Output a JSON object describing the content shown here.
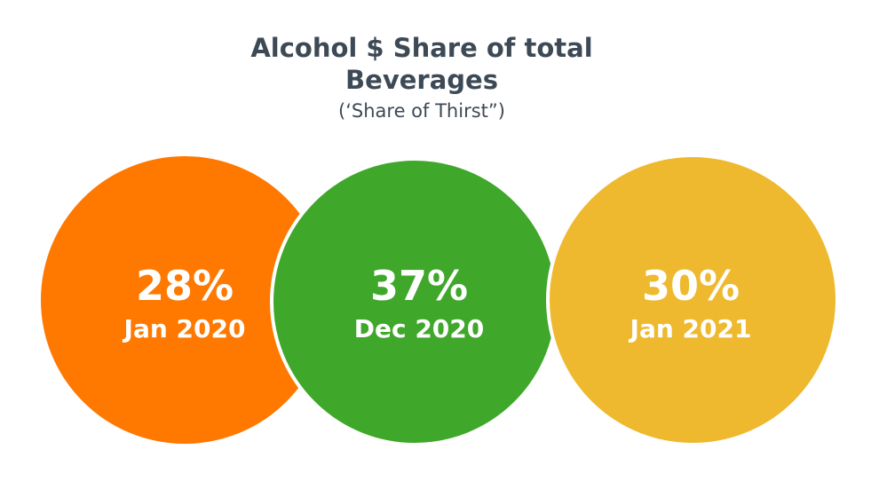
{
  "title": {
    "line1": "Alcohol $ Share of total",
    "line2": "Beverages",
    "subtitle": "(‘Share of Thirst”)"
  },
  "circles": [
    {
      "value": "28%",
      "label": "Jan 2020",
      "color": "#ff7800"
    },
    {
      "value": "37%",
      "label": "Dec 2020",
      "color": "#3fa72a"
    },
    {
      "value": "30%",
      "label": "Jan 2021",
      "color": "#eeb92e"
    }
  ]
}
